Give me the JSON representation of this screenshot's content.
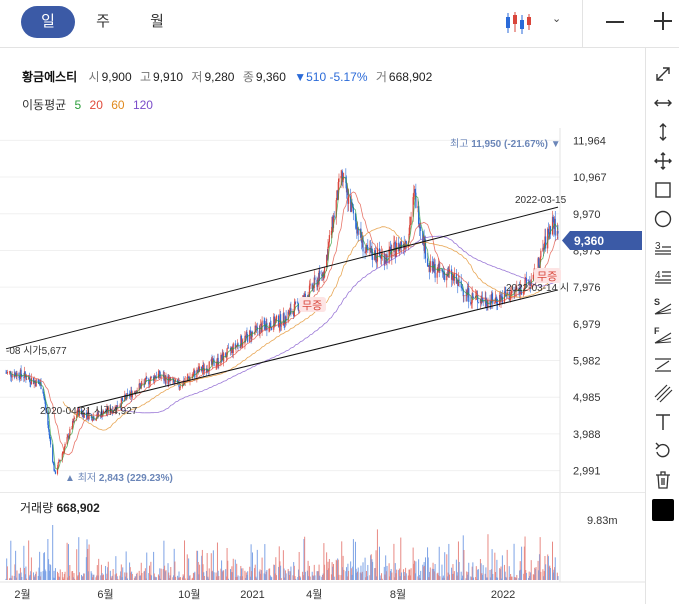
{
  "tabs": [
    {
      "label": "일",
      "active": true
    },
    {
      "label": "주",
      "active": false
    },
    {
      "label": "월",
      "active": false
    }
  ],
  "toolbar": {
    "chart_type_icon": "candlestick-icon",
    "collapse_icon": "chevron-down-icon",
    "minimize_icon": "minus-icon",
    "expand_icon": "plus-icon"
  },
  "stock": {
    "name": "황금에스티",
    "open_label": "시",
    "open": "9,900",
    "high_label": "고",
    "high": "9,910",
    "low_label": "저",
    "low": "9,280",
    "close_label": "종",
    "close": "9,360",
    "change": "▼510 -5.17%",
    "volume_label": "거",
    "volume": "668,902"
  },
  "moving_avg": {
    "label": "이동평균",
    "items": [
      {
        "period": "5",
        "color": "#2a9d3a"
      },
      {
        "period": "20",
        "color": "#e04a3a"
      },
      {
        "period": "60",
        "color": "#e08a1e"
      },
      {
        "period": "120",
        "color": "#7a4cc9"
      }
    ]
  },
  "colors": {
    "up": "#d9453a",
    "down": "#2a6ad8",
    "accent": "#3b5aa6"
  },
  "sidebar_tools": [
    "diagonal-arrows-icon",
    "horizontal-arrows-icon",
    "vertical-arrows-icon",
    "move-icon",
    "square-icon",
    "circle-icon",
    "three-lines-icon",
    "four-lines-icon",
    "speed-fan-icon",
    "fibonacci-fan-icon",
    "parallel-lines-icon",
    "diagonal-lines-icon",
    "text-icon",
    "undo-icon",
    "trash-icon",
    "color-swatch-icon"
  ],
  "volume_panel": {
    "label": "거래량",
    "value": "668,902",
    "axis_max": "9.83m"
  },
  "chart_data": {
    "type": "candlestick",
    "y_ticks": [
      2991,
      3988,
      4985,
      5982,
      6979,
      7976,
      8973,
      9970,
      10967,
      11964
    ],
    "y_tick_labels": [
      "2,991",
      "3,988",
      "4,985",
      "5,982",
      "6,979",
      "7,976",
      "8,973",
      "9,970",
      "10,967",
      "11,964"
    ],
    "ylim": [
      2600,
      12300
    ],
    "x_ticks": [
      "2월",
      "6월",
      "10월",
      "2021",
      "4월",
      "8월",
      "2022"
    ],
    "current_price": {
      "value": 9360,
      "label": "9,360"
    },
    "series_close": [
      {
        "d": "2020-01-08",
        "v": 5650
      },
      {
        "d": "2020-02-01",
        "v": 5600
      },
      {
        "d": "2020-03-01",
        "v": 5300
      },
      {
        "d": "2020-03-19",
        "v": 2900
      },
      {
        "d": "2020-04-21",
        "v": 4600
      },
      {
        "d": "2020-05-15",
        "v": 4450
      },
      {
        "d": "2020-06-15",
        "v": 4700
      },
      {
        "d": "2020-07-15",
        "v": 5200
      },
      {
        "d": "2020-08-15",
        "v": 5600
      },
      {
        "d": "2020-09-15",
        "v": 5300
      },
      {
        "d": "2020-10-15",
        "v": 5700
      },
      {
        "d": "2020-11-15",
        "v": 6000
      },
      {
        "d": "2020-12-15",
        "v": 6500
      },
      {
        "d": "2021-01-15",
        "v": 6900
      },
      {
        "d": "2021-02-15",
        "v": 7100
      },
      {
        "d": "2021-03-15",
        "v": 7600
      },
      {
        "d": "2021-04-15",
        "v": 8400
      },
      {
        "d": "2021-05-10",
        "v": 11000
      },
      {
        "d": "2021-06-15",
        "v": 8900
      },
      {
        "d": "2021-07-15",
        "v": 8800
      },
      {
        "d": "2021-08-15",
        "v": 9300
      },
      {
        "d": "2021-08-25",
        "v": 10500
      },
      {
        "d": "2021-09-15",
        "v": 8500
      },
      {
        "d": "2021-10-15",
        "v": 8300
      },
      {
        "d": "2021-11-15",
        "v": 7700
      },
      {
        "d": "2021-12-15",
        "v": 7600
      },
      {
        "d": "2022-01-15",
        "v": 7800
      },
      {
        "d": "2022-02-15",
        "v": 8200
      },
      {
        "d": "2022-03-14",
        "v": 9800
      },
      {
        "d": "2022-03-22",
        "v": 9360
      }
    ],
    "annotations": [
      {
        "text": "최고",
        "value": "11,950 (-21.67%)",
        "marker": "▼"
      },
      {
        "text": "최저",
        "value": "2,843 (229.23%)",
        "marker": "▲"
      },
      {
        "text": "2020-04-21 시가4,927"
      },
      {
        "text": "-08 시가5,677"
      },
      {
        "text": "2022-03-15"
      },
      {
        "text": "2022-03-14 시"
      },
      {
        "text": "무증"
      },
      {
        "text": "무증"
      }
    ],
    "channel_upper": [
      {
        "d": "2020-01-08",
        "v": 6300
      },
      {
        "d": "2022-03-22",
        "v": 10150
      }
    ],
    "channel_lower": [
      {
        "d": "2020-04-21",
        "v": 4700
      },
      {
        "d": "2022-03-22",
        "v": 7900
      }
    ]
  }
}
